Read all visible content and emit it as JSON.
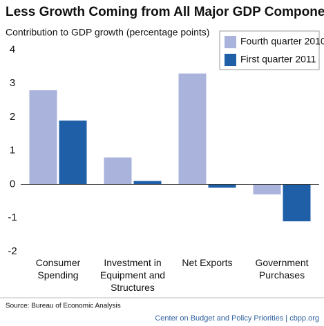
{
  "chart_data": {
    "type": "bar",
    "title": "Less Growth Coming from All Major GDP Components",
    "subtitle": "Contribution to GDP growth (percentage points)",
    "categories": [
      "Consumer Spending",
      "Investment in Equipment and Structures",
      "Net Exports",
      "Government Purchases"
    ],
    "series": [
      {
        "name": "Fourth quarter 2010",
        "color": "#a9b3dc",
        "values": [
          2.8,
          0.8,
          3.3,
          -0.3
        ]
      },
      {
        "name": "First quarter 2011",
        "color": "#1f5fa8",
        "values": [
          1.9,
          0.1,
          -0.1,
          -1.1
        ]
      }
    ],
    "ylim": [
      -2,
      4
    ],
    "yticks": [
      -2,
      -1,
      0,
      1,
      2,
      3,
      4
    ],
    "grid": false,
    "legend": "top-right",
    "source": "Source: Bureau of Economic Analysis",
    "credit": "Center on Budget and Policy Priorities | cbpp.org"
  }
}
